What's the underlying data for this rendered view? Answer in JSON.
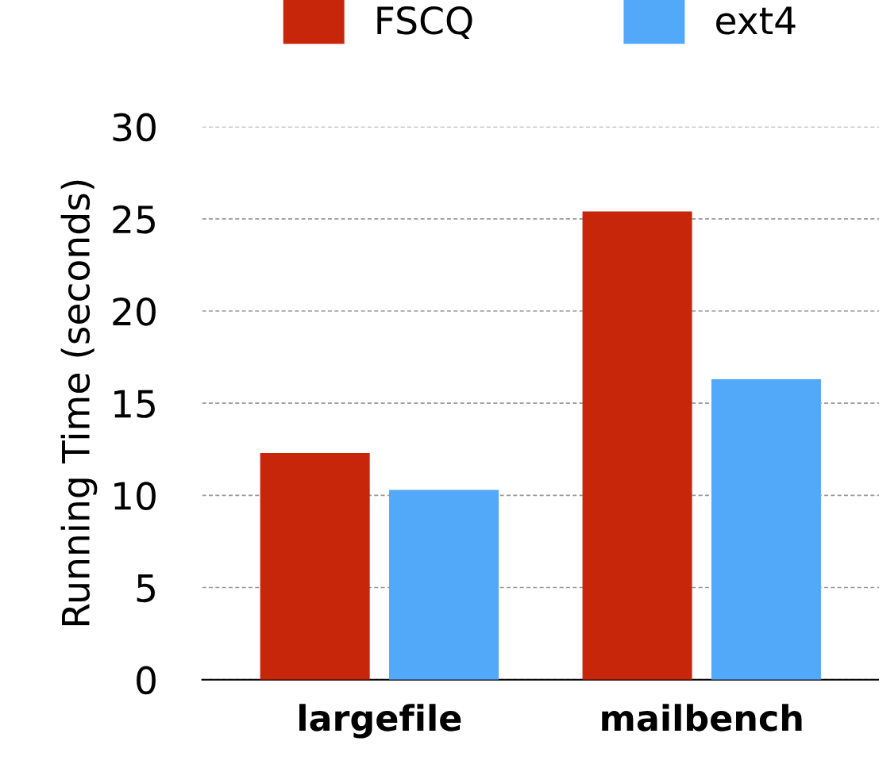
{
  "chart_data": {
    "type": "bar",
    "ylabel": "Running Time (seconds)",
    "categories": [
      "largefile",
      "mailbench"
    ],
    "series": [
      {
        "name": "FSCQ",
        "color": "#c8260a",
        "values": [
          12.3,
          25.4
        ]
      },
      {
        "name": "ext4",
        "color": "#52a8f9",
        "values": [
          10.3,
          16.3
        ]
      }
    ],
    "ylim": [
      0,
      30
    ],
    "yticks": [
      0,
      5,
      10,
      15,
      20,
      25,
      30
    ],
    "grid": "y",
    "legend": "top"
  }
}
